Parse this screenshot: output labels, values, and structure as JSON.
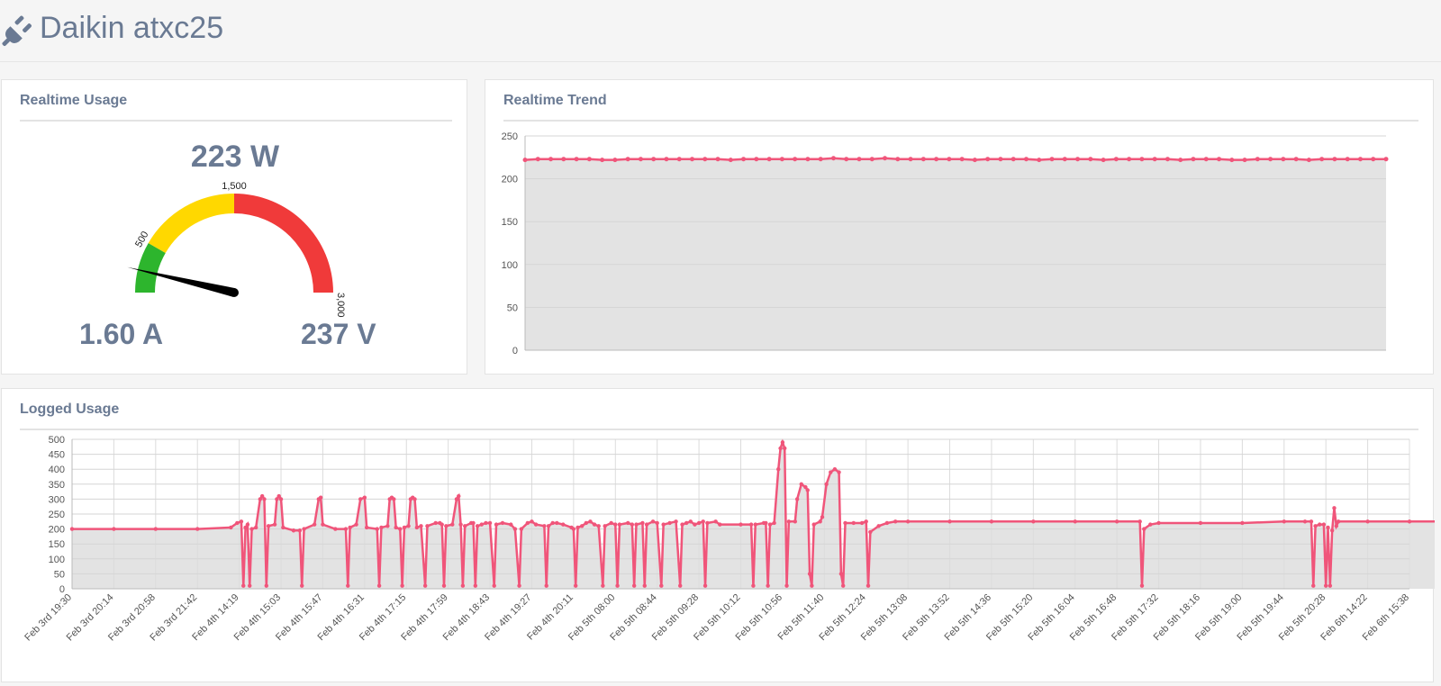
{
  "header": {
    "title": "Daikin atxc25",
    "icon": "plug-icon"
  },
  "realtime_usage": {
    "title": "Realtime Usage",
    "power_text": "223 W",
    "current_text": "1.60 A",
    "voltage_text": "237 V",
    "gauge": {
      "min": 0,
      "max": 3000,
      "value": 223,
      "bands": [
        {
          "from": 0,
          "to": 500,
          "color": "#2db52d"
        },
        {
          "from": 500,
          "to": 1500,
          "color": "#ffd800"
        },
        {
          "from": 1500,
          "to": 3000,
          "color": "#f03a3a"
        }
      ],
      "labels": [
        "500",
        "1,500",
        "3,000"
      ]
    }
  },
  "realtime_trend": {
    "title": "Realtime Trend",
    "chart_data": {
      "type": "area",
      "ylim": [
        0,
        250
      ],
      "yticks": [
        "0",
        "50",
        "100",
        "150",
        "200",
        "250"
      ],
      "color": "#f0557a",
      "values": [
        222,
        223,
        223,
        223,
        223,
        223,
        222,
        222,
        223,
        223,
        223,
        223,
        223,
        223,
        223,
        223,
        222,
        223,
        223,
        223,
        223,
        223,
        223,
        223,
        224,
        223,
        223,
        223,
        224,
        223,
        223,
        223,
        223,
        223,
        223,
        222,
        223,
        223,
        223,
        223,
        222,
        223,
        223,
        223,
        223,
        222,
        223,
        223,
        223,
        223,
        223,
        222,
        223,
        223,
        223,
        222,
        222,
        223,
        223,
        223,
        223,
        222,
        223,
        223,
        223,
        223,
        223,
        223
      ]
    }
  },
  "logged_usage": {
    "title": "Logged Usage",
    "chart_data": {
      "type": "area",
      "ylim": [
        0,
        500
      ],
      "yticks": [
        "0",
        "50",
        "100",
        "150",
        "200",
        "250",
        "300",
        "350",
        "400",
        "450",
        "500"
      ],
      "color": "#f0557a",
      "xticks": [
        "Feb 3rd 19:30",
        "Feb 3rd 20:14",
        "Feb 3rd 20:58",
        "Feb 3rd 21:42",
        "Feb 4th 14:19",
        "Feb 4th 15:03",
        "Feb 4th 15:47",
        "Feb 4th 16:31",
        "Feb 4th 17:15",
        "Feb 4th 17:59",
        "Feb 4th 18:43",
        "Feb 4th 19:27",
        "Feb 4th 20:11",
        "Feb 5th 08:00",
        "Feb 5th 08:44",
        "Feb 5th 09:28",
        "Feb 5th 10:12",
        "Feb 5th 10:56",
        "Feb 5th 11:40",
        "Feb 5th 12:24",
        "Feb 5th 13:08",
        "Feb 5th 13:52",
        "Feb 5th 14:36",
        "Feb 5th 15:20",
        "Feb 5th 16:04",
        "Feb 5th 16:48",
        "Feb 5th 17:32",
        "Feb 5th 18:16",
        "Feb 5th 19:00",
        "Feb 5th 19:44",
        "Feb 5th 20:28",
        "Feb 6th 14:22",
        "Feb 6th 15:38"
      ],
      "points": [
        [
          0,
          200
        ],
        [
          1,
          200
        ],
        [
          2,
          200
        ],
        [
          3,
          200
        ],
        [
          3.8,
          205
        ],
        [
          3.95,
          220
        ],
        [
          4.05,
          225
        ],
        [
          4.1,
          10
        ],
        [
          4.15,
          205
        ],
        [
          4.2,
          215
        ],
        [
          4.25,
          10
        ],
        [
          4.3,
          200
        ],
        [
          4.4,
          205
        ],
        [
          4.5,
          300
        ],
        [
          4.55,
          310
        ],
        [
          4.6,
          300
        ],
        [
          4.65,
          10
        ],
        [
          4.7,
          210
        ],
        [
          4.85,
          215
        ],
        [
          4.9,
          300
        ],
        [
          4.95,
          310
        ],
        [
          5.0,
          300
        ],
        [
          5.05,
          205
        ],
        [
          5.3,
          195
        ],
        [
          5.45,
          195
        ],
        [
          5.5,
          10
        ],
        [
          5.55,
          200
        ],
        [
          5.8,
          215
        ],
        [
          5.9,
          300
        ],
        [
          5.95,
          305
        ],
        [
          6.0,
          215
        ],
        [
          6.3,
          200
        ],
        [
          6.55,
          200
        ],
        [
          6.6,
          10
        ],
        [
          6.65,
          205
        ],
        [
          6.8,
          215
        ],
        [
          6.9,
          300
        ],
        [
          7.0,
          305
        ],
        [
          7.05,
          205
        ],
        [
          7.3,
          200
        ],
        [
          7.35,
          10
        ],
        [
          7.4,
          205
        ],
        [
          7.55,
          210
        ],
        [
          7.6,
          300
        ],
        [
          7.65,
          305
        ],
        [
          7.7,
          300
        ],
        [
          7.75,
          205
        ],
        [
          7.85,
          200
        ],
        [
          7.9,
          10
        ],
        [
          7.95,
          205
        ],
        [
          8.05,
          210
        ],
        [
          8.1,
          300
        ],
        [
          8.15,
          305
        ],
        [
          8.2,
          300
        ],
        [
          8.25,
          205
        ],
        [
          8.35,
          210
        ],
        [
          8.45,
          10
        ],
        [
          8.5,
          210
        ],
        [
          8.7,
          220
        ],
        [
          8.8,
          220
        ],
        [
          8.85,
          215
        ],
        [
          8.9,
          10
        ],
        [
          8.95,
          210
        ],
        [
          9.1,
          215
        ],
        [
          9.2,
          300
        ],
        [
          9.25,
          310
        ],
        [
          9.3,
          215
        ],
        [
          9.35,
          10
        ],
        [
          9.4,
          210
        ],
        [
          9.55,
          220
        ],
        [
          9.6,
          220
        ],
        [
          9.65,
          10
        ],
        [
          9.7,
          210
        ],
        [
          9.8,
          215
        ],
        [
          9.9,
          220
        ],
        [
          10.0,
          220
        ],
        [
          10.1,
          10
        ],
        [
          10.15,
          215
        ],
        [
          10.3,
          220
        ],
        [
          10.5,
          215
        ],
        [
          10.6,
          200
        ],
        [
          10.7,
          10
        ],
        [
          10.75,
          200
        ],
        [
          10.9,
          220
        ],
        [
          11.0,
          225
        ],
        [
          11.1,
          215
        ],
        [
          11.3,
          210
        ],
        [
          11.35,
          10
        ],
        [
          11.4,
          210
        ],
        [
          11.5,
          220
        ],
        [
          11.6,
          220
        ],
        [
          11.75,
          215
        ],
        [
          11.95,
          205
        ],
        [
          12.0,
          200
        ],
        [
          12.05,
          10
        ],
        [
          12.1,
          205
        ],
        [
          12.2,
          210
        ],
        [
          12.3,
          220
        ],
        [
          12.4,
          225
        ],
        [
          12.5,
          215
        ],
        [
          12.6,
          210
        ],
        [
          12.7,
          10
        ],
        [
          12.75,
          210
        ],
        [
          12.9,
          220
        ],
        [
          13.0,
          215
        ],
        [
          13.05,
          10
        ],
        [
          13.1,
          215
        ],
        [
          13.3,
          220
        ],
        [
          13.4,
          215
        ],
        [
          13.45,
          10
        ],
        [
          13.5,
          215
        ],
        [
          13.65,
          220
        ],
        [
          13.7,
          10
        ],
        [
          13.75,
          215
        ],
        [
          13.9,
          225
        ],
        [
          14.0,
          220
        ],
        [
          14.1,
          10
        ],
        [
          14.15,
          215
        ],
        [
          14.3,
          220
        ],
        [
          14.45,
          225
        ],
        [
          14.55,
          10
        ],
        [
          14.6,
          215
        ],
        [
          14.7,
          220
        ],
        [
          14.8,
          225
        ],
        [
          14.9,
          215
        ],
        [
          15.0,
          220
        ],
        [
          15.1,
          225
        ],
        [
          15.15,
          10
        ],
        [
          15.2,
          220
        ],
        [
          15.4,
          225
        ],
        [
          15.5,
          215
        ],
        [
          16.0,
          215
        ],
        [
          16.25,
          215
        ],
        [
          16.3,
          10
        ],
        [
          16.35,
          215
        ],
        [
          16.55,
          220
        ],
        [
          16.6,
          220
        ],
        [
          16.65,
          10
        ],
        [
          16.7,
          215
        ],
        [
          16.8,
          220
        ],
        [
          16.9,
          400
        ],
        [
          16.95,
          470
        ],
        [
          17.0,
          490
        ],
        [
          17.05,
          470
        ],
        [
          17.1,
          10
        ],
        [
          17.15,
          225
        ],
        [
          17.3,
          225
        ],
        [
          17.35,
          300
        ],
        [
          17.45,
          350
        ],
        [
          17.55,
          340
        ],
        [
          17.6,
          330
        ],
        [
          17.65,
          50
        ],
        [
          17.7,
          10
        ],
        [
          17.75,
          215
        ],
        [
          17.9,
          225
        ],
        [
          17.95,
          240
        ],
        [
          18.05,
          350
        ],
        [
          18.15,
          390
        ],
        [
          18.25,
          400
        ],
        [
          18.35,
          390
        ],
        [
          18.4,
          50
        ],
        [
          18.45,
          10
        ],
        [
          18.5,
          220
        ],
        [
          18.7,
          220
        ],
        [
          18.9,
          220
        ],
        [
          19.0,
          225
        ],
        [
          19.05,
          10
        ],
        [
          19.1,
          190
        ],
        [
          19.3,
          210
        ],
        [
          19.5,
          220
        ],
        [
          19.7,
          225
        ],
        [
          20,
          225
        ],
        [
          21,
          225
        ],
        [
          22,
          225
        ],
        [
          23,
          225
        ],
        [
          24,
          225
        ],
        [
          25,
          225
        ],
        [
          25.55,
          225
        ],
        [
          25.6,
          10
        ],
        [
          25.65,
          200
        ],
        [
          25.8,
          215
        ],
        [
          26,
          220
        ],
        [
          27,
          220
        ],
        [
          28,
          220
        ],
        [
          29,
          225
        ],
        [
          29.5,
          225
        ],
        [
          29.65,
          225
        ],
        [
          29.7,
          10
        ],
        [
          29.75,
          210
        ],
        [
          29.85,
          215
        ],
        [
          29.95,
          215
        ],
        [
          30.0,
          10
        ],
        [
          30.05,
          205
        ],
        [
          30.1,
          10
        ],
        [
          30.15,
          195
        ],
        [
          30.2,
          270
        ],
        [
          30.25,
          210
        ],
        [
          30.3,
          225
        ],
        [
          31,
          225
        ],
        [
          32,
          225
        ],
        [
          33,
          225
        ]
      ]
    }
  }
}
